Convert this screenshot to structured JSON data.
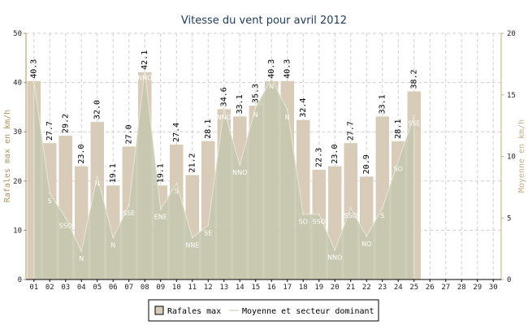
{
  "chart_data": {
    "type": "bar",
    "title": "Vitesse du vent pour avril 2012",
    "ylabel_left": "Rafales max en km/h",
    "ylabel_right": "Moyenne en km/h",
    "ylim_left": [
      0,
      50
    ],
    "yticks_left": [
      0,
      10,
      20,
      30,
      40,
      50
    ],
    "ylim_right": [
      0,
      20
    ],
    "yticks_right": [
      0,
      5,
      10,
      15,
      20
    ],
    "grid": true,
    "legend_position": "bottom-center",
    "categories": [
      "01",
      "02",
      "03",
      "04",
      "05",
      "06",
      "07",
      "08",
      "09",
      "10",
      "11",
      "12",
      "13",
      "14",
      "15",
      "16",
      "17",
      "18",
      "19",
      "20",
      "21",
      "22",
      "23",
      "24",
      "25",
      "26",
      "27",
      "28",
      "29",
      "30"
    ],
    "series": [
      {
        "name": "Rafales max",
        "type": "bar",
        "color": "#d8ccb8",
        "values": [
          40.3,
          27.7,
          29.2,
          23.0,
          32.0,
          19.1,
          27.0,
          42.1,
          19.1,
          27.4,
          21.2,
          28.1,
          34.6,
          33.1,
          35.3,
          40.3,
          40.3,
          32.4,
          22.3,
          23.0,
          27.7,
          20.9,
          33.1,
          28.1,
          38.2,
          null,
          null,
          null,
          null,
          null
        ]
      },
      {
        "name": "Moyenne et secteur dominant",
        "type": "area",
        "color": "#c4c7ad",
        "values": [
          16.1,
          7.0,
          5.0,
          2.3,
          8.4,
          3.4,
          6.0,
          17.0,
          5.7,
          7.8,
          3.4,
          4.4,
          13.8,
          9.3,
          14.0,
          16.3,
          13.8,
          5.3,
          5.3,
          2.4,
          5.8,
          3.5,
          5.8,
          9.6,
          13.3,
          null,
          null,
          null,
          null,
          null
        ],
        "sectors": [
          "",
          "S",
          "SSO",
          "N",
          "N",
          "N",
          "SSE",
          "NNO",
          "ENE",
          "S",
          "NNE",
          "SE",
          "NNO",
          "NNO",
          "N",
          "N",
          "N",
          "SO",
          "SSO",
          "NNO",
          "SSO",
          "NO",
          "S",
          "SO",
          "SSE",
          "",
          "",
          "",
          "",
          ""
        ]
      }
    ]
  },
  "legend": {
    "bar_label": "Rafales max",
    "line_label": "Moyenne et secteur dominant"
  }
}
